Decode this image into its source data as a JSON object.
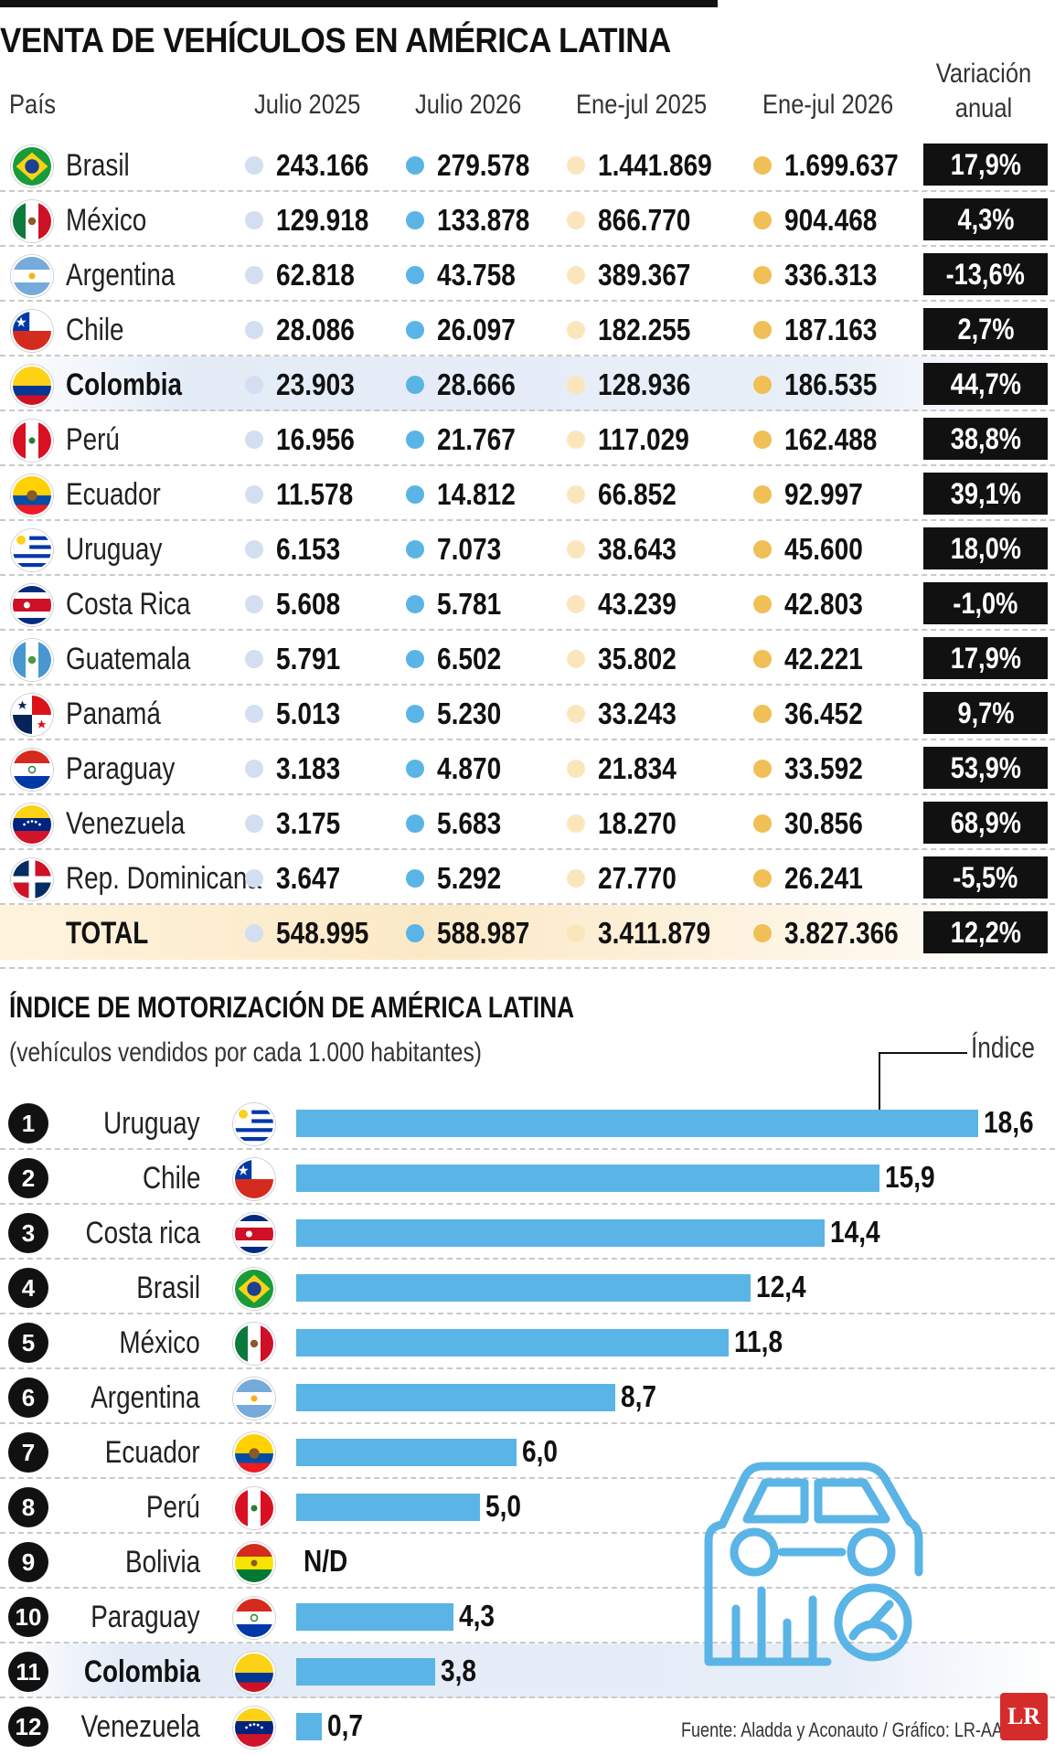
{
  "title": "VENTA DE VEHÍCULOS EN AMÉRICA LATINA",
  "headers": {
    "pais": "País",
    "julio_2025": "Julio 2025",
    "julio_2026": "Julio 2026",
    "enejul_2025": "Ene-jul 2025",
    "enejul_2026": "Ene-jul 2026",
    "variacion_line1": "Variación",
    "variacion_line2": "anual"
  },
  "colors": {
    "julio_2025": "#d3def0",
    "julio_2026": "#5ab4e6",
    "enejul_2025": "#fbe6bc",
    "enejul_2026": "#f0bf56",
    "bar": "#5ab4e6",
    "badge": "#111111",
    "logo": "#d62b2b"
  },
  "sales_table": [
    {
      "flag": "brazil-flag",
      "pais": "Brasil",
      "julio_2025": "243.166",
      "julio_2026": "279.578",
      "enejul_2025": "1.441.869",
      "enejul_2026": "1.699.637",
      "variacion": "17,9%"
    },
    {
      "flag": "mexico-flag",
      "pais": "México",
      "julio_2025": "129.918",
      "julio_2026": "133.878",
      "enejul_2025": "866.770",
      "enejul_2026": "904.468",
      "variacion": "4,3%"
    },
    {
      "flag": "argentina-flag",
      "pais": "Argentina",
      "julio_2025": "62.818",
      "julio_2026": "43.758",
      "enejul_2025": "389.367",
      "enejul_2026": "336.313",
      "variacion": "-13,6%"
    },
    {
      "flag": "chile-flag",
      "pais": "Chile",
      "julio_2025": "28.086",
      "julio_2026": "26.097",
      "enejul_2025": "182.255",
      "enejul_2026": "187.163",
      "variacion": "2,7%"
    },
    {
      "flag": "colombia-flag",
      "pais": "Colombia",
      "julio_2025": "23.903",
      "julio_2026": "28.666",
      "enejul_2025": "128.936",
      "enejul_2026": "186.535",
      "variacion": "44,7%"
    },
    {
      "flag": "peru-flag",
      "pais": "Perú",
      "julio_2025": "16.956",
      "julio_2026": "21.767",
      "enejul_2025": "117.029",
      "enejul_2026": "162.488",
      "variacion": "38,8%"
    },
    {
      "flag": "ecuador-flag",
      "pais": "Ecuador",
      "julio_2025": "11.578",
      "julio_2026": "14.812",
      "enejul_2025": "66.852",
      "enejul_2026": "92.997",
      "variacion": "39,1%"
    },
    {
      "flag": "uruguay-flag",
      "pais": "Uruguay",
      "julio_2025": "6.153",
      "julio_2026": "7.073",
      "enejul_2025": "38.643",
      "enejul_2026": "45.600",
      "variacion": "18,0%"
    },
    {
      "flag": "costa-rica-flag",
      "pais": "Costa Rica",
      "julio_2025": "5.608",
      "julio_2026": "5.781",
      "enejul_2025": "43.239",
      "enejul_2026": "42.803",
      "variacion": "-1,0%"
    },
    {
      "flag": "guatemala-flag",
      "pais": "Guatemala",
      "julio_2025": "5.791",
      "julio_2026": "6.502",
      "enejul_2025": "35.802",
      "enejul_2026": "42.221",
      "variacion": "17,9%"
    },
    {
      "flag": "panama-flag",
      "pais": "Panamá",
      "julio_2025": "5.013",
      "julio_2026": "5.230",
      "enejul_2025": "33.243",
      "enejul_2026": "36.452",
      "variacion": "9,7%"
    },
    {
      "flag": "paraguay-flag",
      "pais": "Paraguay",
      "julio_2025": "3.183",
      "julio_2026": "4.870",
      "enejul_2025": "21.834",
      "enejul_2026": "33.592",
      "variacion": "53,9%"
    },
    {
      "flag": "venezuela-flag",
      "pais": "Venezuela",
      "julio_2025": "3.175",
      "julio_2026": "5.683",
      "enejul_2025": "18.270",
      "enejul_2026": "30.856",
      "variacion": "68,9%"
    },
    {
      "flag": "dominican-republic-flag",
      "pais": "Rep. Dominicana",
      "julio_2025": "3.647",
      "julio_2026": "5.292",
      "enejul_2025": "27.770",
      "enejul_2026": "26.241",
      "variacion": "-5,5%"
    }
  ],
  "total": {
    "pais": "TOTAL",
    "julio_2025": "548.995",
    "julio_2026": "588.987",
    "enejul_2025": "3.411.879",
    "enejul_2026": "3.827.366",
    "variacion": "12,2%"
  },
  "index_title": "ÍNDICE DE MOTORIZACIÓN DE AMÉRICA LATINA",
  "index_subtitle": "(vehículos vendidos por cada 1.000 habitantes)",
  "chart_data": {
    "type": "bar",
    "orientation": "horizontal",
    "series_label": "Índice",
    "categories": [
      "Uruguay",
      "Chile",
      "Costa rica",
      "Brasil",
      "México",
      "Argentina",
      "Ecuador",
      "Perú",
      "Bolivia",
      "Paraguay",
      "Colombia",
      "Venezuela"
    ],
    "ranks": [
      "1",
      "2",
      "3",
      "4",
      "5",
      "6",
      "7",
      "8",
      "9",
      "10",
      "11",
      "12"
    ],
    "flags": [
      "uruguay-flag",
      "chile-flag",
      "costa-rica-flag",
      "brazil-flag",
      "mexico-flag",
      "argentina-flag",
      "ecuador-flag",
      "peru-flag",
      "bolivia-flag",
      "paraguay-flag",
      "colombia-flag",
      "venezuela-flag"
    ],
    "values": [
      18.6,
      15.9,
      14.4,
      12.4,
      11.8,
      8.7,
      6.0,
      5.0,
      null,
      4.3,
      3.8,
      0.7
    ],
    "value_labels": [
      "18,6",
      "15,9",
      "14,4",
      "12,4",
      "11,8",
      "8,7",
      "6,0",
      "5,0",
      "N/D",
      "4,3",
      "3,8",
      "0,7"
    ],
    "highlight": "Colombia",
    "xlim": [
      0,
      18.6
    ],
    "grid": false,
    "legend": "none"
  },
  "source": "Fuente: Aladda y Aconauto / Gráfico: LR-AA",
  "logo_text": "LR",
  "car_icon": "car-chart-icon"
}
